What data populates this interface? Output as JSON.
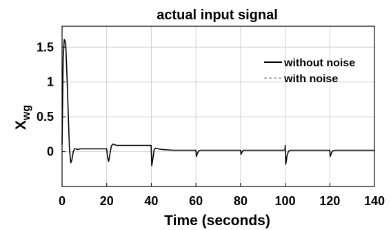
{
  "chart_data": {
    "type": "line",
    "title": "actual input signal",
    "xlabel": "Time (seconds)",
    "ylabel": "X",
    "ylabel_subscript": "wg",
    "xlim": [
      0,
      140
    ],
    "ylim": [
      -0.5,
      1.8
    ],
    "xticks": [
      0,
      20,
      40,
      60,
      80,
      100,
      120,
      140
    ],
    "yticks": [
      0,
      0.5,
      1,
      1.5
    ],
    "xtick_labels": [
      "0",
      "20",
      "40",
      "60",
      "80",
      "100",
      "120",
      "140"
    ],
    "ytick_labels": [
      "0",
      "0.5",
      "1",
      "1.5"
    ],
    "grid": true,
    "legend_position": "top-right",
    "series": [
      {
        "name": "without noise",
        "style": "solid",
        "color": "#000000",
        "x": [
          0,
          0.5,
          1,
          1.6,
          2.2,
          2.8,
          3.3,
          3.9,
          4.4,
          5,
          5.6,
          6.2,
          7,
          8,
          10,
          14,
          18,
          20,
          20.4,
          20.9,
          21.5,
          22.1,
          22.8,
          23.5,
          24.5,
          26,
          30,
          35,
          39.9,
          40.2,
          40.7,
          41.3,
          42,
          43,
          45,
          50,
          55,
          60,
          60.2,
          60.6,
          61.2,
          62,
          63.5,
          66,
          70,
          75,
          80,
          80.2,
          80.6,
          81.2,
          82,
          84,
          90,
          95,
          99.9,
          100,
          100.3,
          100.8,
          101.4,
          102.2,
          103.5,
          106,
          110,
          115,
          120,
          120.2,
          120.6,
          121.2,
          122.2,
          124,
          130,
          135,
          140
        ],
        "y": [
          0.1,
          1.35,
          1.61,
          1.57,
          1.1,
          0.5,
          0.05,
          -0.16,
          -0.12,
          0.0,
          0.04,
          0.04,
          0.03,
          0.04,
          0.04,
          0.04,
          0.04,
          0.04,
          -0.08,
          -0.14,
          -0.02,
          0.08,
          0.11,
          0.1,
          0.09,
          0.09,
          0.09,
          0.09,
          0.09,
          -0.2,
          -0.1,
          0.03,
          0.05,
          0.04,
          0.03,
          0.02,
          0.02,
          0.02,
          -0.07,
          -0.03,
          0.01,
          0.02,
          0.02,
          0.02,
          0.02,
          0.02,
          0.02,
          -0.04,
          -0.01,
          0.02,
          0.02,
          0.02,
          0.02,
          0.02,
          0.02,
          0.09,
          -0.18,
          -0.06,
          0.0,
          0.02,
          0.02,
          0.02,
          0.02,
          0.02,
          0.02,
          -0.07,
          -0.03,
          0.01,
          0.02,
          0.02,
          0.02,
          0.02,
          0.02
        ]
      },
      {
        "name": "with noise",
        "style": "dashed",
        "color": "#808080",
        "x": [
          0,
          0.5,
          1,
          1.6,
          2.2,
          2.8,
          3.3,
          3.9,
          4.4,
          5,
          5.6,
          6.2,
          7,
          8,
          10,
          14,
          18,
          20,
          20.4,
          20.9,
          21.5,
          22.1,
          22.8,
          23.5,
          24.5,
          26,
          30,
          35,
          39.9,
          40.2,
          40.7,
          41.3,
          42,
          43,
          45,
          50,
          55,
          60,
          60.2,
          60.6,
          61.2,
          62,
          63.5,
          66,
          70,
          75,
          80,
          80.2,
          80.6,
          81.2,
          82,
          84,
          90,
          95,
          99.9,
          100,
          100.3,
          100.8,
          101.4,
          102.2,
          103.5,
          106,
          110,
          115,
          120,
          120.2,
          120.6,
          121.2,
          122.2,
          124,
          130,
          135,
          140
        ],
        "y": [
          0.1,
          1.35,
          1.61,
          1.57,
          1.1,
          0.5,
          0.05,
          -0.16,
          -0.12,
          0.0,
          0.04,
          0.04,
          0.03,
          0.04,
          0.04,
          0.04,
          0.04,
          0.04,
          -0.08,
          -0.14,
          -0.02,
          0.08,
          0.11,
          0.1,
          0.09,
          0.09,
          0.09,
          0.09,
          0.09,
          -0.2,
          -0.1,
          0.03,
          0.05,
          0.04,
          0.03,
          0.02,
          0.02,
          0.02,
          -0.07,
          -0.03,
          0.01,
          0.02,
          0.02,
          0.02,
          0.02,
          0.02,
          0.02,
          -0.04,
          -0.01,
          0.02,
          0.02,
          0.02,
          0.02,
          0.02,
          0.02,
          0.09,
          -0.18,
          -0.06,
          0.0,
          0.02,
          0.02,
          0.02,
          0.02,
          0.02,
          0.02,
          -0.07,
          -0.03,
          0.01,
          0.02,
          0.02,
          0.02,
          0.02,
          0.02
        ]
      }
    ]
  }
}
